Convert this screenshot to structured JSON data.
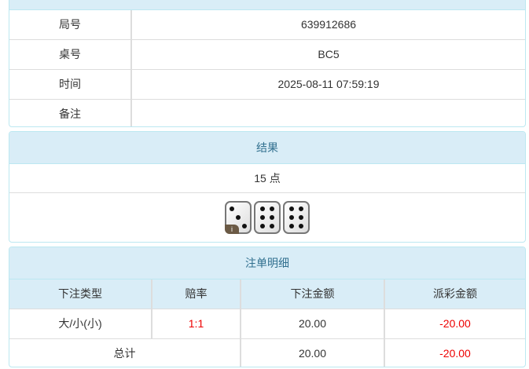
{
  "info": {
    "rows": [
      {
        "label": "局号",
        "value": "639912686"
      },
      {
        "label": "桌号",
        "value": "BC5"
      },
      {
        "label": "时间",
        "value": "2025-08-11 07:59:19"
      },
      {
        "label": "备注",
        "value": ""
      }
    ]
  },
  "result": {
    "title": "结果",
    "points": "15 点",
    "dice": [
      3,
      6,
      6
    ],
    "info_badge": "i"
  },
  "bets": {
    "title": "注单明细",
    "headers": [
      "下注类型",
      "赔率",
      "下注金额",
      "派彩金额"
    ],
    "rows": [
      {
        "type": "大/小(小)",
        "odds": "1:1",
        "amount": "20.00",
        "payout": "-20.00"
      }
    ],
    "total": {
      "label": "总计",
      "amount": "20.00",
      "payout": "-20.00"
    }
  },
  "colors": {
    "header_bg": "#d9edf7",
    "header_text": "#31708f",
    "negative": "#e00000"
  }
}
